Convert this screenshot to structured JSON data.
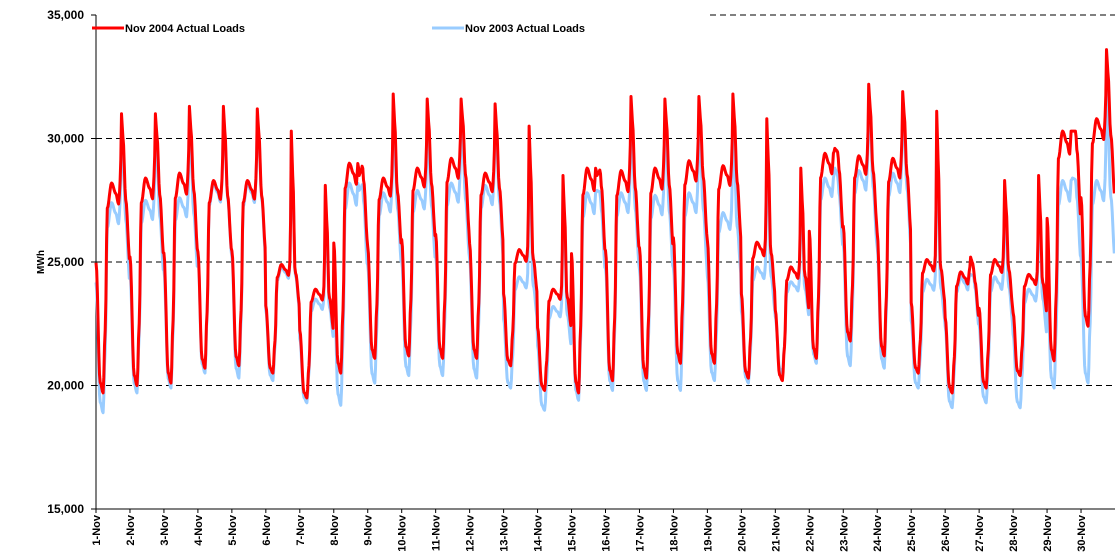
{
  "chart_data": {
    "type": "line",
    "title": "",
    "xlabel": "",
    "ylabel": "MWh",
    "ylim": [
      15000,
      35000
    ],
    "yticks": [
      "15,000",
      "20,000",
      "25,000",
      "30,000",
      "35,000"
    ],
    "categories": [
      "1-Nov",
      "2-Nov",
      "3-Nov",
      "4-Nov",
      "5-Nov",
      "6-Nov",
      "7-Nov",
      "8-Nov",
      "9-Nov",
      "10-Nov",
      "11-Nov",
      "12-Nov",
      "13-Nov",
      "14-Nov",
      "15-Nov",
      "16-Nov",
      "17-Nov",
      "18-Nov",
      "19-Nov",
      "20-Nov",
      "21-Nov",
      "22-Nov",
      "23-Nov",
      "24-Nov",
      "25-Nov",
      "26-Nov",
      "27-Nov",
      "28-Nov",
      "29-Nov",
      "30-Nov"
    ],
    "grid": true,
    "legend_position": "top",
    "series": [
      {
        "name": "Nov 2004 Actual Loads",
        "color": "#ff0000",
        "daily_min": [
          19700,
          20000,
          20100,
          20700,
          20800,
          20500,
          19500,
          20500,
          21100,
          21200,
          21100,
          21100,
          20800,
          19800,
          19700,
          20200,
          20300,
          20900,
          20900,
          20300,
          20200,
          21100,
          21800,
          21200,
          20500,
          19700,
          19900,
          20400,
          21000,
          22400
        ],
        "daily_max": [
          31000,
          31000,
          31300,
          31300,
          31200,
          30300,
          28100,
          28500,
          31800,
          31600,
          31600,
          31400,
          30500,
          28500,
          28500,
          31700,
          31600,
          31700,
          31800,
          30800,
          28800,
          29600,
          32200,
          31900,
          31100,
          25200,
          28300,
          28500,
          30300,
          33600
        ],
        "daily_plateau": [
          28200,
          28400,
          28600,
          28300,
          28300,
          24900,
          23900,
          29000,
          28400,
          28800,
          29200,
          28600,
          25500,
          23900,
          28800,
          28700,
          28800,
          29100,
          28900,
          25800,
          24800,
          29400,
          29300,
          29200,
          25100,
          24600,
          25100,
          24500,
          30300,
          30800
        ]
      },
      {
        "name": "Nov 2003 Actual Loads",
        "color": "#99ccff",
        "daily_min": [
          18900,
          19700,
          19900,
          20500,
          20300,
          20200,
          19300,
          19200,
          20100,
          20400,
          20400,
          20300,
          19900,
          19000,
          19400,
          19800,
          19800,
          19800,
          20200,
          20100,
          20500,
          20900,
          20800,
          20700,
          19900,
          19100,
          19300,
          19100,
          19900,
          20100
        ],
        "daily_max": [
          30300,
          30300,
          30900,
          31000,
          30900,
          29900,
          27700,
          27900,
          30500,
          30500,
          30700,
          30800,
          29700,
          28000,
          27900,
          30700,
          30900,
          30700,
          30600,
          29700,
          28200,
          28800,
          31600,
          31300,
          30200,
          24500,
          27700,
          27700,
          28400,
          31900
        ],
        "daily_plateau": [
          27400,
          27500,
          27600,
          28200,
          28200,
          24800,
          23500,
          28200,
          27800,
          27900,
          28200,
          28100,
          24400,
          23200,
          27800,
          27800,
          27700,
          27800,
          27000,
          24800,
          24200,
          28400,
          28700,
          28600,
          24300,
          24400,
          24400,
          23900,
          28300,
          28300
        ]
      }
    ]
  }
}
